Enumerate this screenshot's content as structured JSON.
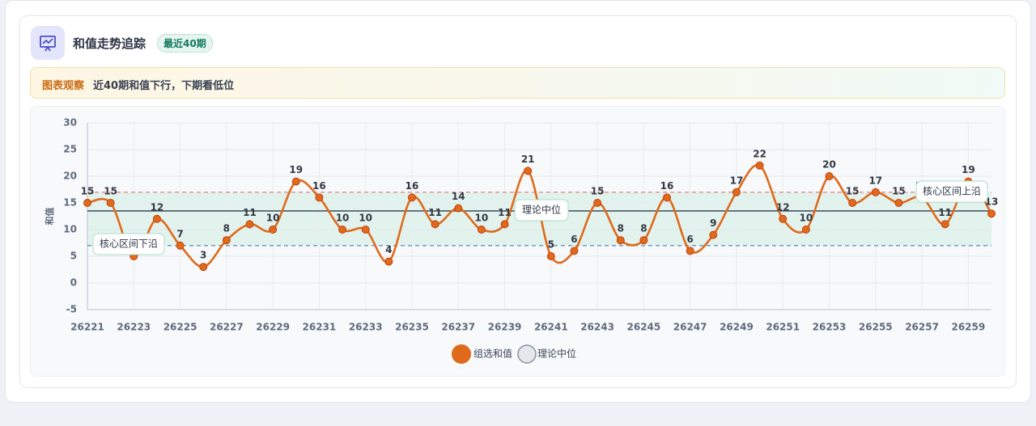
{
  "header": {
    "title": "和值走势追踪",
    "badge": "最近40期"
  },
  "observation": {
    "label": "图表观察",
    "text": "近40期和值下行，下期看低位"
  },
  "chart_data": {
    "type": "line",
    "categories": [
      "26221",
      null,
      "26223",
      null,
      "26225",
      null,
      "26227",
      null,
      "26229",
      null,
      "26231",
      null,
      "26233",
      null,
      "26235",
      null,
      "26237",
      null,
      "26239",
      null,
      "26241",
      null,
      "26243",
      null,
      "26245",
      null,
      "26247",
      null,
      "26249",
      null,
      "26251",
      null,
      "26253",
      null,
      "26255",
      null,
      "26257",
      null,
      "26259",
      null
    ],
    "series": [
      {
        "name": "组选和值",
        "color": "#e06a1c",
        "values": [
          15,
          15,
          5,
          12,
          7,
          3,
          8,
          11,
          10,
          19,
          16,
          10,
          10,
          4,
          16,
          11,
          14,
          10,
          11,
          21,
          5,
          6,
          15,
          8,
          8,
          16,
          6,
          9,
          17,
          22,
          12,
          10,
          20,
          15,
          17,
          15,
          16,
          11,
          19,
          13
        ]
      }
    ],
    "reference_line": {
      "name": "理论中位",
      "value": 13.5,
      "color": "#4b5668"
    },
    "band": {
      "lower": {
        "name": "核心区间下沿",
        "value": 7,
        "color": "#6b8fc4"
      },
      "upper": {
        "name": "核心区间上沿",
        "value": 17,
        "color": "#e38a8a"
      },
      "color": "#d8f1e7"
    },
    "ylabel": "和值",
    "ylim": [
      -5,
      30
    ],
    "yticks": [
      -5,
      0,
      5,
      10,
      15,
      20,
      25,
      30
    ],
    "grid": true
  }
}
